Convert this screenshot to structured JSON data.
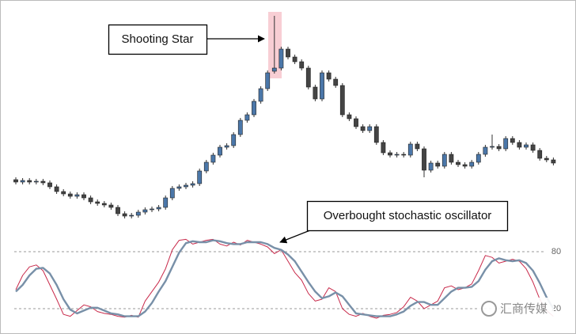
{
  "chart_data": [
    {
      "type": "candlestick",
      "ylim": [
        10,
        290
      ],
      "up_color": "#4b77a9",
      "down_color": "#444444",
      "open": [
        73,
        70,
        72,
        70,
        71,
        69,
        64,
        58,
        55,
        52,
        54,
        50,
        45,
        43,
        41,
        38,
        30,
        27,
        28,
        32,
        35,
        36,
        38,
        50,
        62,
        64,
        66,
        68,
        84,
        95,
        104,
        114,
        116,
        130,
        148,
        155,
        172,
        188,
        210,
        214,
        238,
        228,
        222,
        214,
        190,
        175,
        208,
        200,
        192,
        155,
        150,
        140,
        135,
        140,
        120,
        107,
        104,
        105,
        104,
        118,
        112,
        85,
        94,
        90,
        105,
        95,
        92,
        90,
        95,
        105,
        114,
        115,
        112,
        125,
        120,
        114,
        117,
        110,
        100,
        98
      ],
      "high": [
        76,
        75,
        75,
        74,
        74,
        72,
        67,
        61,
        58,
        57,
        57,
        53,
        48,
        46,
        44,
        41,
        33,
        31,
        35,
        38,
        39,
        41,
        53,
        65,
        67,
        69,
        71,
        87,
        98,
        107,
        117,
        119,
        133,
        151,
        158,
        175,
        191,
        211,
        280,
        241,
        241,
        231,
        225,
        217,
        193,
        211,
        211,
        203,
        195,
        158,
        153,
        143,
        143,
        143,
        123,
        110,
        108,
        108,
        121,
        121,
        115,
        97,
        97,
        108,
        108,
        98,
        95,
        98,
        108,
        117,
        130,
        118,
        128,
        128,
        123,
        120,
        120,
        113,
        103,
        101
      ],
      "low": [
        67,
        67,
        67,
        67,
        66,
        61,
        55,
        52,
        49,
        49,
        47,
        42,
        40,
        38,
        35,
        27,
        24,
        24,
        25,
        29,
        32,
        33,
        35,
        47,
        59,
        61,
        63,
        65,
        81,
        92,
        101,
        111,
        113,
        127,
        145,
        152,
        169,
        185,
        207,
        211,
        225,
        219,
        211,
        187,
        172,
        172,
        197,
        189,
        152,
        147,
        137,
        132,
        132,
        117,
        104,
        101,
        101,
        101,
        101,
        109,
        76,
        82,
        87,
        87,
        92,
        89,
        87,
        87,
        92,
        102,
        111,
        109,
        109,
        117,
        111,
        111,
        107,
        97,
        95,
        91
      ],
      "close": [
        70,
        72,
        70,
        71,
        69,
        64,
        58,
        55,
        52,
        54,
        50,
        45,
        43,
        41,
        38,
        30,
        27,
        28,
        32,
        35,
        36,
        38,
        50,
        62,
        64,
        66,
        68,
        84,
        95,
        104,
        114,
        116,
        130,
        148,
        155,
        172,
        188,
        208,
        214,
        238,
        228,
        222,
        214,
        190,
        175,
        208,
        200,
        192,
        155,
        150,
        140,
        135,
        140,
        120,
        107,
        104,
        105,
        104,
        118,
        112,
        85,
        94,
        90,
        105,
        95,
        92,
        90,
        95,
        105,
        114,
        115,
        112,
        125,
        120,
        114,
        117,
        110,
        100,
        98,
        94
      ],
      "annotations": [
        {
          "text": "Shooting Star"
        }
      ]
    },
    {
      "type": "line",
      "ylim": [
        0,
        100
      ],
      "yticks": [
        20,
        80
      ],
      "grid": true,
      "series": [
        {
          "color": "#c8294a",
          "values": [
            40,
            55,
            64,
            66,
            60,
            45,
            30,
            14,
            12,
            18,
            24,
            22,
            17,
            15,
            14,
            12,
            11,
            13,
            11,
            28,
            38,
            48,
            62,
            82,
            92,
            93,
            88,
            90,
            92,
            93,
            88,
            86,
            90,
            87,
            92,
            90,
            88,
            85,
            78,
            82,
            70,
            58,
            50,
            36,
            28,
            30,
            42,
            38,
            20,
            14,
            12,
            15,
            12,
            10,
            13,
            14,
            16,
            22,
            32,
            28,
            20,
            24,
            28,
            42,
            44,
            40,
            42,
            46,
            60,
            76,
            74,
            68,
            70,
            72,
            70,
            62,
            48,
            30,
            18,
            12
          ]
        },
        {
          "color": "#7890a8",
          "values": [
            38,
            45,
            55,
            62,
            63,
            57,
            45,
            30,
            19,
            15,
            18,
            21,
            21,
            18,
            15,
            14,
            12,
            12,
            12,
            17,
            26,
            38,
            49,
            64,
            79,
            89,
            91,
            90,
            90,
            92,
            91,
            89,
            88,
            88,
            90,
            90,
            90,
            88,
            84,
            82,
            77,
            70,
            59,
            48,
            38,
            31,
            33,
            37,
            33,
            24,
            15,
            14,
            13,
            12,
            12,
            12,
            14,
            17,
            23,
            27,
            27,
            24,
            24,
            31,
            38,
            42,
            42,
            43,
            49,
            61,
            70,
            73,
            71,
            70,
            71,
            68,
            60,
            47,
            32,
            20
          ]
        }
      ],
      "annotations": [
        {
          "text": "Overbought stochastic oscillator"
        }
      ]
    }
  ],
  "watermark": "汇商传媒"
}
